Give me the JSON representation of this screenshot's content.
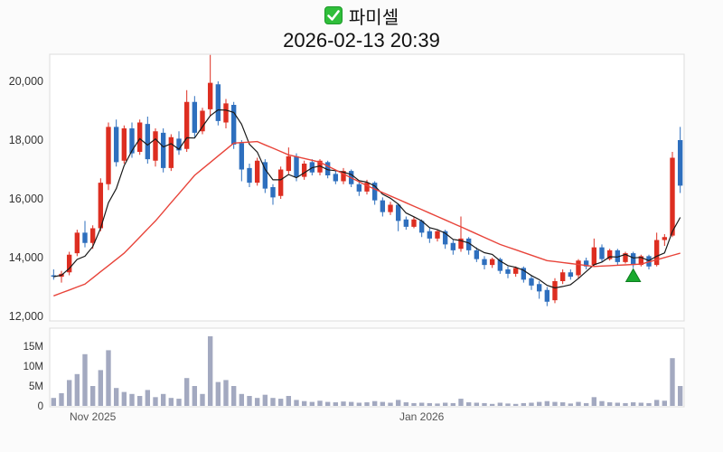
{
  "header": {
    "title": "파미셀",
    "checkbox_icon": "green-checkbox-checked",
    "datetime": "2026-02-13 20:39"
  },
  "chart_data": {
    "type": "candlestick",
    "title": "파미셀",
    "subtitle": "2026-02-13 20:39",
    "legend_position": "none",
    "grid": false,
    "price_axis": {
      "ticks": [
        12000,
        14000,
        16000,
        18000,
        20000
      ],
      "tick_labels": [
        "12,000",
        "14,000",
        "16,000",
        "18,000",
        "20,000"
      ],
      "range": [
        11850,
        21000
      ]
    },
    "volume_axis": {
      "ticks_m": [
        0,
        5,
        10,
        15
      ],
      "tick_labels": [
        "0",
        "5M",
        "10M",
        "15M"
      ],
      "max_m": 18
    },
    "x_labels": [
      {
        "label": "Nov 2025",
        "index": 5
      },
      {
        "label": "Jan 2026",
        "index": 47
      }
    ],
    "colors": {
      "up": "#dd2e21",
      "down": "#2e6fbe",
      "ma_short": "#1a1a1a",
      "ma_long": "#e8443a",
      "volume_bar": "#a3a9c0",
      "marker": "#18a92e",
      "panel_border": "#dcdcdc",
      "panel_bg": "#ffffff"
    },
    "ma_short_window": 5,
    "candles": [
      [
        13400,
        13600,
        13250,
        13350
      ],
      [
        13350,
        13550,
        13150,
        13450
      ],
      [
        13500,
        14200,
        13400,
        14100
      ],
      [
        14150,
        14950,
        14050,
        14850
      ],
      [
        14850,
        15250,
        14350,
        14500
      ],
      [
        14500,
        15100,
        14300,
        15000
      ],
      [
        15000,
        16700,
        14900,
        16550
      ],
      [
        16500,
        18600,
        16300,
        18450
      ],
      [
        18450,
        18700,
        17100,
        17250
      ],
      [
        17300,
        18500,
        17200,
        18400
      ],
      [
        18400,
        18600,
        17400,
        17550
      ],
      [
        17600,
        18700,
        17500,
        18600
      ],
      [
        18550,
        18800,
        17200,
        17350
      ],
      [
        17300,
        18400,
        17100,
        18300
      ],
      [
        18250,
        18400,
        16900,
        17050
      ],
      [
        17050,
        18200,
        16950,
        18100
      ],
      [
        18050,
        18300,
        17500,
        17650
      ],
      [
        17700,
        19700,
        17600,
        19300
      ],
      [
        19300,
        19500,
        18100,
        18250
      ],
      [
        18300,
        19100,
        18200,
        19000
      ],
      [
        19050,
        20900,
        18800,
        19950
      ],
      [
        19900,
        20000,
        18500,
        18650
      ],
      [
        18600,
        19400,
        18400,
        19250
      ],
      [
        19200,
        19300,
        17700,
        17850
      ],
      [
        17900,
        18000,
        16600,
        17000
      ],
      [
        17050,
        17200,
        16400,
        16550
      ],
      [
        16550,
        17400,
        16450,
        17300
      ],
      [
        17250,
        17350,
        16200,
        16350
      ],
      [
        16400,
        16500,
        15800,
        16050
      ],
      [
        16100,
        17100,
        16000,
        17000
      ],
      [
        16950,
        17750,
        16850,
        17450
      ],
      [
        17450,
        17550,
        16600,
        16750
      ],
      [
        16750,
        17300,
        16650,
        17200
      ],
      [
        17250,
        17350,
        16800,
        16900
      ],
      [
        16900,
        17350,
        16800,
        17300
      ],
      [
        17250,
        17300,
        16700,
        16800
      ],
      [
        16850,
        16950,
        16500,
        16600
      ],
      [
        16600,
        17050,
        16500,
        16950
      ],
      [
        16950,
        17000,
        16400,
        16500
      ],
      [
        16500,
        16600,
        16100,
        16250
      ],
      [
        16250,
        16650,
        16150,
        16550
      ],
      [
        16550,
        16600,
        15800,
        15950
      ],
      [
        15950,
        16050,
        15400,
        15550
      ],
      [
        15550,
        15900,
        15450,
        15800
      ],
      [
        15800,
        15850,
        14900,
        15250
      ],
      [
        15300,
        15400,
        14950,
        15050
      ],
      [
        15050,
        15400,
        15000,
        15300
      ],
      [
        15250,
        15300,
        14700,
        14850
      ],
      [
        14900,
        15000,
        14500,
        14650
      ],
      [
        14650,
        14950,
        14550,
        14900
      ],
      [
        14900,
        14950,
        14300,
        14450
      ],
      [
        14500,
        14600,
        14100,
        14250
      ],
      [
        14300,
        15400,
        14200,
        14650
      ],
      [
        14650,
        14700,
        14100,
        14250
      ],
      [
        14250,
        14350,
        13850,
        13950
      ],
      [
        13950,
        14050,
        13600,
        13750
      ],
      [
        13750,
        14000,
        13650,
        13950
      ],
      [
        13950,
        14000,
        13450,
        13550
      ],
      [
        13600,
        13700,
        13300,
        13450
      ],
      [
        13450,
        13700,
        13350,
        13650
      ],
      [
        13650,
        13700,
        13150,
        13250
      ],
      [
        13300,
        13400,
        12900,
        13050
      ],
      [
        13100,
        13200,
        12600,
        12850
      ],
      [
        12900,
        13000,
        12350,
        12500
      ],
      [
        12550,
        13300,
        12450,
        13200
      ],
      [
        13200,
        13600,
        13100,
        13500
      ],
      [
        13500,
        13600,
        13250,
        13350
      ],
      [
        13400,
        13950,
        13300,
        13900
      ],
      [
        13900,
        14000,
        13600,
        13700
      ],
      [
        13750,
        14650,
        13700,
        14350
      ],
      [
        14350,
        14450,
        13850,
        13950
      ],
      [
        13950,
        14300,
        13900,
        14250
      ],
      [
        14250,
        14300,
        13750,
        13850
      ],
      [
        13850,
        14200,
        13800,
        14150
      ],
      [
        14150,
        14200,
        13650,
        13750
      ],
      [
        13750,
        14100,
        13700,
        14050
      ],
      [
        14050,
        14100,
        13600,
        13700
      ],
      [
        13750,
        14850,
        13700,
        14600
      ],
      [
        14600,
        14800,
        14400,
        14700
      ],
      [
        14750,
        17600,
        14700,
        17400
      ],
      [
        18000,
        18450,
        16200,
        16450
      ]
    ],
    "volumes_m": [
      2.0,
      3.2,
      6.5,
      8.0,
      13.0,
      5.0,
      9.0,
      14.0,
      4.5,
      3.5,
      3.0,
      2.5,
      4.0,
      2.2,
      3.0,
      2.0,
      1.8,
      7.0,
      5.0,
      3.0,
      17.5,
      6.0,
      6.5,
      5.0,
      3.0,
      2.5,
      2.0,
      2.8,
      2.0,
      1.8,
      2.5,
      1.5,
      1.2,
      1.0,
      1.3,
      1.0,
      0.9,
      1.1,
      1.0,
      0.8,
      0.9,
      1.2,
      1.0,
      0.8,
      1.5,
      0.9,
      0.7,
      0.8,
      0.7,
      0.6,
      0.8,
      0.7,
      1.8,
      0.9,
      0.8,
      0.7,
      0.5,
      0.8,
      0.6,
      0.5,
      0.7,
      0.8,
      1.0,
      1.2,
      1.0,
      0.9,
      0.6,
      1.0,
      0.7,
      2.2,
      1.2,
      0.9,
      0.8,
      0.7,
      0.9,
      0.8,
      0.7,
      1.5,
      1.3,
      12.0,
      5.0
    ],
    "ma_long_points": [
      [
        0,
        12700
      ],
      [
        4,
        13100
      ],
      [
        9,
        14150
      ],
      [
        13,
        15250
      ],
      [
        18,
        16800
      ],
      [
        23,
        17900
      ],
      [
        26,
        17950
      ],
      [
        30,
        17500
      ],
      [
        34,
        17250
      ],
      [
        40,
        16450
      ],
      [
        46,
        15750
      ],
      [
        52,
        15050
      ],
      [
        57,
        14450
      ],
      [
        63,
        13900
      ],
      [
        69,
        13700
      ],
      [
        75,
        13780
      ],
      [
        80,
        14150
      ]
    ],
    "marker": {
      "type": "triangle-up",
      "index": 74,
      "price": 13400
    }
  }
}
